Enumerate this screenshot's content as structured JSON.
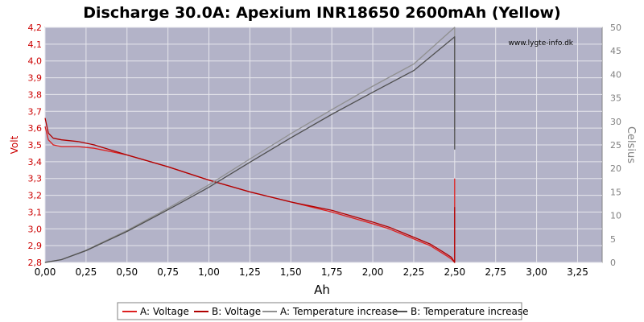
{
  "chart_data": {
    "type": "line",
    "title": "Discharge 30.0A: Apexium INR18650 2600mAh (Yellow)",
    "xlabel": "Ah",
    "ylabel": "Volt",
    "ylabel_right": "Celsius",
    "watermark": "www.lygte-info.dk",
    "xlim": [
      0,
      3.4
    ],
    "ylim": [
      2.8,
      4.2
    ],
    "ylim_right": [
      0,
      50
    ],
    "x_ticks": [
      "0,00",
      "0,25",
      "0,50",
      "0,75",
      "1,00",
      "1,25",
      "1,50",
      "1,75",
      "2,00",
      "2,25",
      "2,50",
      "2,75",
      "3,00",
      "3,25"
    ],
    "y_ticks": [
      "2,8",
      "2,9",
      "3,0",
      "3,1",
      "3,2",
      "3,3",
      "3,4",
      "3,5",
      "3,6",
      "3,7",
      "3,8",
      "3,9",
      "4,0",
      "4,1",
      "4,2"
    ],
    "y_right_ticks": [
      "0",
      "5",
      "10",
      "15",
      "20",
      "25",
      "30",
      "35",
      "40",
      "45",
      "50"
    ],
    "grid": true,
    "legend_position": "bottom",
    "colors": {
      "plot_bg": "#b3b3c8",
      "grid": "#e6e6ec",
      "voltage_a": "#dd2020",
      "voltage_b": "#b00000",
      "temp_a": "#909090",
      "temp_b": "#505050",
      "left_axis": "#cc0000",
      "right_axis": "#808080"
    },
    "series": [
      {
        "name": "A: Voltage",
        "axis": "left",
        "x": [
          0,
          0.02,
          0.05,
          0.1,
          0.2,
          0.3,
          0.4,
          0.5,
          0.75,
          1.0,
          1.25,
          1.5,
          1.75,
          2.0,
          2.1,
          2.2,
          2.3,
          2.35,
          2.4,
          2.45,
          2.48,
          2.5,
          2.5
        ],
        "y": [
          3.61,
          3.53,
          3.5,
          3.49,
          3.49,
          3.48,
          3.46,
          3.44,
          3.37,
          3.29,
          3.22,
          3.16,
          3.1,
          3.03,
          3.0,
          2.96,
          2.92,
          2.9,
          2.87,
          2.84,
          2.82,
          2.8,
          3.3
        ]
      },
      {
        "name": "B: Voltage",
        "axis": "left",
        "x": [
          0,
          0.02,
          0.05,
          0.1,
          0.2,
          0.3,
          0.4,
          0.5,
          0.75,
          1.0,
          1.25,
          1.5,
          1.75,
          2.0,
          2.1,
          2.2,
          2.3,
          2.35,
          2.4,
          2.45,
          2.48,
          2.5,
          2.5
        ],
        "y": [
          3.66,
          3.57,
          3.54,
          3.53,
          3.52,
          3.5,
          3.47,
          3.44,
          3.37,
          3.29,
          3.22,
          3.16,
          3.11,
          3.04,
          3.01,
          2.97,
          2.93,
          2.91,
          2.88,
          2.85,
          2.83,
          2.8,
          3.13
        ]
      },
      {
        "name": "A: Temperature increase",
        "axis": "right",
        "x": [
          0,
          0.1,
          0.25,
          0.5,
          0.75,
          1.0,
          1.25,
          1.5,
          1.75,
          2.0,
          2.25,
          2.5,
          2.5
        ],
        "y": [
          0,
          0.6,
          2.6,
          6.8,
          11.5,
          16.5,
          22.0,
          27.4,
          32.5,
          37.5,
          42.2,
          50.0,
          28.0
        ]
      },
      {
        "name": "B: Temperature increase",
        "axis": "right",
        "x": [
          0,
          0.1,
          0.25,
          0.5,
          0.75,
          1.0,
          1.25,
          1.5,
          1.75,
          2.0,
          2.25,
          2.5,
          2.5
        ],
        "y": [
          0,
          0.6,
          2.5,
          6.6,
          11.2,
          16.0,
          21.3,
          26.5,
          31.5,
          36.2,
          40.8,
          48.0,
          24.0
        ]
      }
    ]
  }
}
